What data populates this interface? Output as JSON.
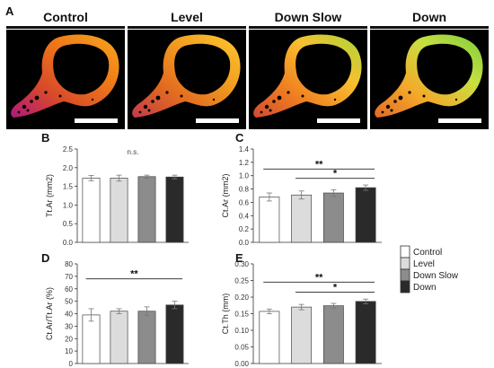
{
  "figure": {
    "images_label": "A",
    "image_conditions": [
      "Control",
      "Level",
      "Down Slow",
      "Down"
    ],
    "images": [
      {
        "name": "Control",
        "colors": [
          "#b0187a",
          "#d84a2a",
          "#f07a18",
          "#f6a820"
        ]
      },
      {
        "name": "Level",
        "colors": [
          "#c43a4a",
          "#e26a20",
          "#f2a020",
          "#ffc830"
        ]
      },
      {
        "name": "Down Slow",
        "colors": [
          "#d24a30",
          "#f08020",
          "#f8c030",
          "#a8d838"
        ]
      },
      {
        "name": "Down",
        "colors": [
          "#e06a28",
          "#f4a82a",
          "#c8e040",
          "#7ccc3c"
        ]
      }
    ]
  },
  "legend": {
    "items": [
      {
        "label": "Control",
        "color": "#ffffff"
      },
      {
        "label": "Level",
        "color": "#dcdcdc"
      },
      {
        "label": "Down Slow",
        "color": "#8c8c8c"
      },
      {
        "label": "Down",
        "color": "#2a2a2a"
      }
    ]
  },
  "chart_data": [
    {
      "panel": "B",
      "type": "bar",
      "ylabel": "Tt.Ar (mm2)",
      "categories": [
        "Control",
        "Level",
        "Down Slow",
        "Down"
      ],
      "values": [
        1.72,
        1.72,
        1.76,
        1.75
      ],
      "errors": [
        0.07,
        0.08,
        0.04,
        0.05
      ],
      "ylim": [
        0,
        2.5
      ],
      "yticks": [
        "0.0",
        "0.5",
        "1.0",
        "1.5",
        "2.0",
        "2.5"
      ],
      "note": "n.s.",
      "sig": []
    },
    {
      "panel": "C",
      "type": "bar",
      "ylabel": "Ct.Ar (mm2)",
      "categories": [
        "Control",
        "Level",
        "Down Slow",
        "Down"
      ],
      "values": [
        0.68,
        0.71,
        0.74,
        0.82
      ],
      "errors": [
        0.06,
        0.06,
        0.05,
        0.04
      ],
      "ylim": [
        0,
        1.4
      ],
      "yticks": [
        "0.0",
        "0.2",
        "0.4",
        "0.6",
        "0.8",
        "1.0",
        "1.2",
        "1.4"
      ],
      "note": "",
      "sig": [
        {
          "from": 0,
          "to": 3,
          "level": 1.1,
          "label": "**"
        },
        {
          "from": 1,
          "to": 3,
          "level": 0.96,
          "label": "*"
        }
      ]
    },
    {
      "panel": "D",
      "type": "bar",
      "ylabel": "Ct.Ar/Tt.Ar (%)",
      "categories": [
        "Control",
        "Level",
        "Down Slow",
        "Down"
      ],
      "values": [
        39,
        42,
        42,
        47
      ],
      "errors": [
        5,
        2,
        3.5,
        3
      ],
      "ylim": [
        0,
        80
      ],
      "yticks": [
        "0",
        "10",
        "20",
        "30",
        "40",
        "50",
        "60",
        "70",
        "80"
      ],
      "note": "",
      "sig": [
        {
          "from": 0,
          "to": 3,
          "level": 68,
          "label": "**"
        }
      ]
    },
    {
      "panel": "E",
      "type": "bar",
      "ylabel": "Ct.Th (mm)",
      "categories": [
        "Control",
        "Level",
        "Down Slow",
        "Down"
      ],
      "values": [
        0.157,
        0.17,
        0.174,
        0.187
      ],
      "errors": [
        0.007,
        0.008,
        0.007,
        0.007
      ],
      "ylim": [
        0,
        0.3
      ],
      "yticks": [
        "0.00",
        "0.05",
        "0.10",
        "0.15",
        "0.20",
        "0.25",
        "0.30"
      ],
      "note": "",
      "sig": [
        {
          "from": 0,
          "to": 3,
          "level": 0.245,
          "label": "**"
        },
        {
          "from": 1,
          "to": 3,
          "level": 0.215,
          "label": "*"
        }
      ]
    }
  ]
}
